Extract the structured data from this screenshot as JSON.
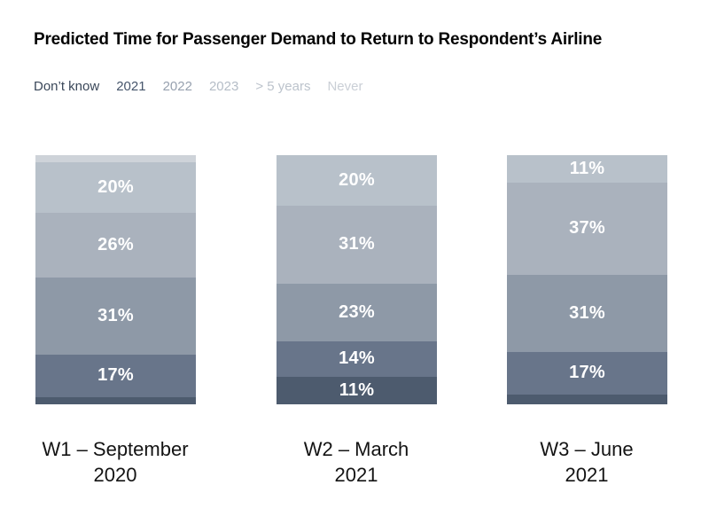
{
  "title": "Predicted Time for Passenger Demand to Return to Respondent’s Airline",
  "legend": [
    {
      "label": "Don’t know",
      "color": "#3a4759"
    },
    {
      "label": "2021",
      "color": "#46556b"
    },
    {
      "label": "2022",
      "color": "#97a1af"
    },
    {
      "label": "2023",
      "color": "#b5bdc7"
    },
    {
      "label": "> 5 years",
      "color": "#bcc3cc"
    },
    {
      "label": "Never",
      "color": "#cacfd6"
    }
  ],
  "chart_data": {
    "type": "bar",
    "variant": "100pct-stacked-column",
    "title": "Predicted Time for Passenger Demand to Return to Respondent’s Airline",
    "unit": "%",
    "legend_position": "top-left",
    "grid": false,
    "axes_hidden": true,
    "label_min_value": 10,
    "categories": [
      "W1 – September 2020",
      "W2 – March 2021",
      "W3 – June 2021"
    ],
    "category_label_lines": [
      [
        "W1 – September",
        "2020"
      ],
      [
        "W2 – March",
        "2021"
      ],
      [
        "W3 – June",
        "2021"
      ]
    ],
    "stack_order_top_to_bottom": [
      "Never",
      "> 5 years",
      "2023",
      "2022",
      "2021",
      "Don’t know"
    ],
    "series": [
      {
        "name": "Never",
        "color": "#ced3d9",
        "values": [
          3,
          0,
          0
        ]
      },
      {
        "name": "> 5 years",
        "color": "#b8c1ca",
        "values": [
          20,
          20,
          11
        ]
      },
      {
        "name": "2023",
        "color": "#aab2bd",
        "values": [
          26,
          31,
          37
        ]
      },
      {
        "name": "2022",
        "color": "#8e99a7",
        "values": [
          31,
          23,
          31
        ]
      },
      {
        "name": "2021",
        "color": "#68758a",
        "values": [
          17,
          14,
          17
        ]
      },
      {
        "name": "Don’t know",
        "color": "#4d5b6e",
        "values": [
          3,
          11,
          4
        ]
      }
    ]
  }
}
